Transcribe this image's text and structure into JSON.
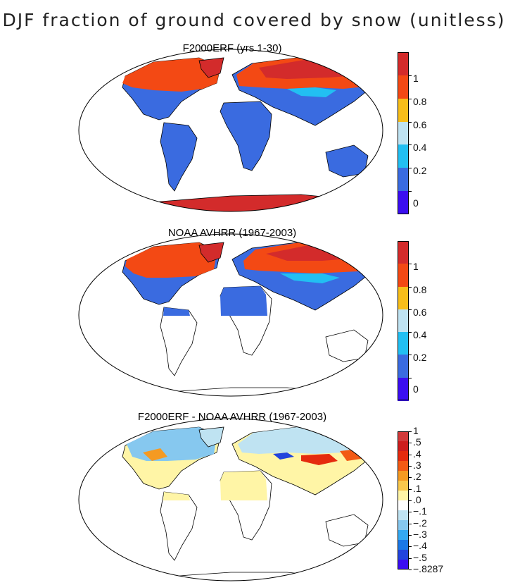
{
  "main_title": "DJF fraction of ground covered by snow (unitless)",
  "panels": [
    {
      "title": "F2000ERF (yrs 1-30)",
      "colorbar": {
        "colors": [
          "#3b0ef0",
          "#3a6be0",
          "#22bff2",
          "#bfe3f2",
          "#f7be1a",
          "#f34914",
          "#d32b2b"
        ],
        "labels": [
          "0",
          "0.2",
          "0.4",
          "0.6",
          "0.8",
          "1"
        ]
      }
    },
    {
      "title": "NOAA AVHRR (1967-2003)",
      "colorbar": {
        "colors": [
          "#3b0ef0",
          "#3a6be0",
          "#22bff2",
          "#bfe3f2",
          "#f7be1a",
          "#f34914",
          "#d32b2b"
        ],
        "labels": [
          "0",
          "0.2",
          "0.4",
          "0.6",
          "0.8",
          "1"
        ]
      }
    },
    {
      "title": "F2000ERF - NOAA AVHRR (1967-2003)",
      "colorbar": {
        "colors": [
          "#3b0ef0",
          "#2244dd",
          "#1a78e6",
          "#34a9f2",
          "#86c8ef",
          "#bfe3f2",
          "#ffffff",
          "#fff5a6",
          "#f9c84c",
          "#f59a22",
          "#f25a14",
          "#e52b0e",
          "#cc1d1d",
          "#d13a3a"
        ],
        "labels": [
          "1",
          ".5",
          ".4",
          ".3",
          ".2",
          ".1",
          ".0",
          "−.1",
          "−.2",
          "−.3",
          "−.4",
          "−.5",
          "−.8287"
        ]
      }
    }
  ],
  "map_colors": {
    "snow_high": "#f34914",
    "snow_full": "#d32b2b",
    "no_snow": "#3a6be0",
    "mid": "#22bff2",
    "diff_pos": "#fff5a6",
    "diff_neg": "#bfe3f2",
    "diff_strong_pos": "#e52b0e",
    "diff_strong_neg": "#2244dd"
  }
}
